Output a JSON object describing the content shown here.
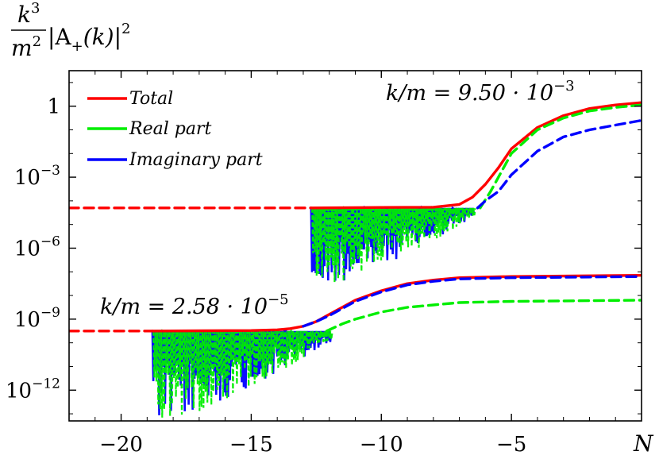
{
  "chart_data": {
    "type": "line",
    "title": "",
    "xlabel": "N",
    "ylabel": "k^3/m^2 |A_+(k)|^2",
    "ylabel_parts": {
      "num": "k",
      "num_exp": "3",
      "den": "m",
      "den_exp": "2",
      "rest": "|A",
      "sub": "+",
      "tail": "(k)|",
      "tail_exp": "2"
    },
    "xlim": [
      -22,
      0
    ],
    "ylim_log10": [
      -13.3,
      1.5
    ],
    "y_scale": "log",
    "x_ticks": [
      {
        "value": -20,
        "label": "−20"
      },
      {
        "value": -15,
        "label": "−15"
      },
      {
        "value": -10,
        "label": "−10"
      },
      {
        "value": -5,
        "label": "−5"
      }
    ],
    "y_ticks": [
      {
        "exp": 0,
        "base": "1",
        "sup": ""
      },
      {
        "exp": -3,
        "base": "10",
        "sup": "−3"
      },
      {
        "exp": -6,
        "base": "10",
        "sup": "−6"
      },
      {
        "exp": -9,
        "base": "10",
        "sup": "−9"
      },
      {
        "exp": -12,
        "base": "10",
        "sup": "−12"
      }
    ],
    "legend": {
      "position": "top-left",
      "entries": [
        {
          "label": "Total",
          "color": "#ff0000"
        },
        {
          "label": "Real part",
          "color": "#00ee00"
        },
        {
          "label": "Imaginary part",
          "color": "#0000ff"
        }
      ]
    },
    "annotations": [
      {
        "text": "k/m = 9.50 · 10",
        "sup": "−3",
        "position": "top-right"
      },
      {
        "text": "k/m = 2.58 · 10",
        "sup": "−5",
        "position": "middle-left"
      }
    ],
    "series": [
      {
        "name": "k/m = 9.50e-3 initial (dashed)",
        "color": "#ff0000",
        "style": "dashed",
        "x": [
          -22,
          -12.7
        ],
        "log10_y": [
          -4.3,
          -4.3
        ]
      },
      {
        "name": "k/m = 9.50e-3 Total",
        "color": "#ff0000",
        "style": "solid",
        "x": [
          -12.7,
          -10,
          -8,
          -7,
          -6.5,
          -6,
          -5.5,
          -5,
          -4,
          -3,
          -2,
          -1,
          0
        ],
        "log10_y": [
          -4.3,
          -4.28,
          -4.27,
          -4.15,
          -3.85,
          -3.3,
          -2.6,
          -1.8,
          -0.9,
          -0.4,
          -0.1,
          0.05,
          0.15
        ]
      },
      {
        "name": "k/m = 9.50e-3 Real part",
        "color": "#00ee00",
        "style": "dashed",
        "x": [
          -6.2,
          -5.8,
          -5.5,
          -5,
          -4,
          -3,
          -2,
          -1,
          0
        ],
        "log10_y": [
          -4.3,
          -3.6,
          -3.0,
          -2.0,
          -1.0,
          -0.5,
          -0.2,
          -0.05,
          0.05
        ]
      },
      {
        "name": "k/m = 9.50e-3 Imaginary part",
        "color": "#0000ff",
        "style": "dashed",
        "x": [
          -6.3,
          -6.0,
          -5.5,
          -5,
          -4,
          -3,
          -2,
          -1,
          0
        ],
        "log10_y": [
          -4.3,
          -4.0,
          -3.6,
          -2.9,
          -1.9,
          -1.3,
          -1.0,
          -0.8,
          -0.6
        ]
      },
      {
        "name": "k/m = 2.58e-5 initial (dashed)",
        "color": "#ff0000",
        "style": "dashed",
        "x": [
          -22,
          -18.8
        ],
        "log10_y": [
          -9.5,
          -9.5
        ]
      },
      {
        "name": "k/m = 2.58e-5 Total",
        "color": "#ff0000",
        "style": "solid",
        "x": [
          -18.8,
          -15,
          -14,
          -13.5,
          -13,
          -12.5,
          -12,
          -11,
          -10,
          -9,
          -8,
          -7,
          -5,
          0
        ],
        "log10_y": [
          -9.5,
          -9.48,
          -9.45,
          -9.4,
          -9.3,
          -9.1,
          -8.8,
          -8.2,
          -7.8,
          -7.5,
          -7.35,
          -7.25,
          -7.2,
          -7.15
        ]
      },
      {
        "name": "k/m = 2.58e-5 Real part",
        "color": "#00ee00",
        "style": "dashed",
        "x": [
          -12.1,
          -11.5,
          -11,
          -10,
          -9,
          -8,
          -7,
          -5,
          0
        ],
        "log10_y": [
          -9.5,
          -9.2,
          -9.0,
          -8.7,
          -8.5,
          -8.4,
          -8.3,
          -8.25,
          -8.2
        ]
      },
      {
        "name": "k/m = 2.58e-5 Imaginary part",
        "color": "#0000ff",
        "style": "dashed",
        "x": [
          -13.0,
          -12.5,
          -12,
          -11,
          -10,
          -9,
          -8,
          -7,
          -5,
          0
        ],
        "log10_y": [
          -9.3,
          -9.1,
          -8.85,
          -8.25,
          -7.85,
          -7.55,
          -7.4,
          -7.3,
          -7.25,
          -7.2
        ]
      }
    ],
    "oscillations": [
      {
        "name": "k/m = 9.50e-3 oscillations",
        "colors": [
          "#0000ff",
          "#00ee00"
        ],
        "x_range": [
          -12.7,
          -6.5
        ],
        "baseline_log10": -4.3,
        "dip_max_log10": -7.8,
        "dip_end_log10": -4.7
      },
      {
        "name": "k/m = 2.58e-5 oscillations",
        "colors": [
          "#0000ff",
          "#00ee00"
        ],
        "x_range": [
          -18.8,
          -12.0
        ],
        "baseline_log10": -9.5,
        "dip_max_log10": -13.5,
        "dip_end_log10": -10.0
      }
    ]
  }
}
